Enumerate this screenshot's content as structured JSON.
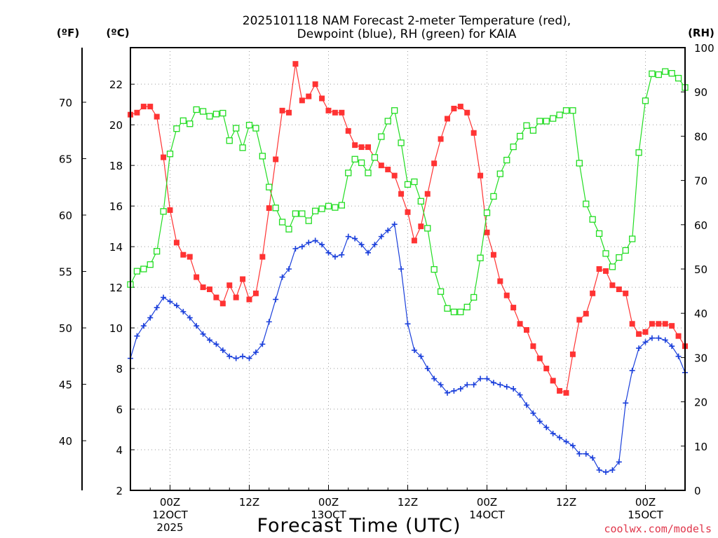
{
  "chart_data": {
    "type": "line",
    "title_lines": [
      "2025101118 NAM Forecast 2-meter Temperature (red),",
      "Dewpoint (blue), RH (green) for KAIA"
    ],
    "units": {
      "fahrenheit": "(ºF)",
      "celsius": "(ºC)",
      "rh": "(RH)"
    },
    "xlabel": "Forecast Time (UTC)",
    "credit": "coolwx.com/models",
    "x_unit": "forecast hour",
    "xlim": [
      0,
      84
    ],
    "x_ticks": [
      {
        "hour": 6,
        "lines": [
          "00Z",
          "12OCT",
          "2025"
        ]
      },
      {
        "hour": 18,
        "lines": [
          "12Z"
        ]
      },
      {
        "hour": 30,
        "lines": [
          "00Z",
          "13OCT"
        ]
      },
      {
        "hour": 42,
        "lines": [
          "12Z"
        ]
      },
      {
        "hour": 54,
        "lines": [
          "00Z",
          "14OCT"
        ]
      },
      {
        "hour": 66,
        "lines": [
          "12Z"
        ]
      },
      {
        "hour": 78,
        "lines": [
          "00Z",
          "15OCT"
        ]
      }
    ],
    "ylim_c": [
      2,
      23.8
    ],
    "celsius_ticks": [
      2,
      4,
      6,
      8,
      10,
      12,
      14,
      16,
      18,
      20,
      22
    ],
    "fahrenheit_ticks": [
      40,
      45,
      50,
      55,
      60,
      65,
      70
    ],
    "ylim_rh": [
      0,
      100
    ],
    "rh_ticks": [
      0,
      10,
      20,
      30,
      40,
      50,
      60,
      70,
      80,
      90,
      100
    ],
    "grid": true,
    "series": [
      {
        "name": "Temperature",
        "axis": "celsius",
        "color": "#ff3333",
        "marker": "filled-square",
        "x": [
          0,
          1,
          2,
          3,
          4,
          5,
          6,
          7,
          8,
          9,
          10,
          11,
          12,
          13,
          14,
          15,
          16,
          17,
          18,
          19,
          20,
          21,
          22,
          23,
          24,
          25,
          26,
          27,
          28,
          29,
          30,
          31,
          32,
          33,
          34,
          35,
          36,
          37,
          38,
          39,
          40,
          41,
          42,
          43,
          44,
          45,
          46,
          47,
          48,
          49,
          50,
          51,
          52,
          53,
          54,
          55,
          56,
          57,
          58,
          59,
          60,
          61,
          62,
          63,
          64,
          65,
          66,
          67,
          68,
          69,
          70,
          71,
          72,
          73,
          74,
          75,
          76,
          77,
          78,
          79,
          80,
          81,
          82,
          83,
          84
        ],
        "values": [
          20.5,
          20.6,
          20.9,
          20.9,
          20.4,
          18.4,
          15.8,
          14.2,
          13.6,
          13.5,
          12.5,
          12.0,
          11.9,
          11.5,
          11.2,
          12.1,
          11.5,
          12.4,
          11.4,
          11.7,
          13.5,
          15.9,
          18.3,
          20.7,
          20.6,
          23.0,
          21.2,
          21.4,
          22.0,
          21.3,
          20.7,
          20.6,
          20.6,
          19.7,
          19.0,
          18.9,
          18.9,
          18.4,
          18.0,
          17.8,
          17.5,
          16.6,
          15.7,
          14.3,
          15.0,
          16.6,
          18.1,
          19.3,
          20.3,
          20.8,
          20.9,
          20.6,
          19.6,
          17.5,
          14.7,
          13.6,
          12.3,
          11.6,
          11.0,
          10.2,
          9.9,
          9.1,
          8.5,
          8.0,
          7.4,
          6.9,
          6.8,
          8.7,
          10.4,
          10.7,
          11.7,
          12.9,
          12.8,
          12.1,
          11.9,
          11.7,
          10.2,
          9.7,
          9.8,
          10.2,
          10.2,
          10.2,
          10.1,
          9.6,
          9.1
        ]
      },
      {
        "name": "Dewpoint",
        "axis": "celsius",
        "color": "#1a3fdb",
        "marker": "plus",
        "x": [
          0,
          1,
          2,
          3,
          4,
          5,
          6,
          7,
          8,
          9,
          10,
          11,
          12,
          13,
          14,
          15,
          16,
          17,
          18,
          19,
          20,
          21,
          22,
          23,
          24,
          25,
          26,
          27,
          28,
          29,
          30,
          31,
          32,
          33,
          34,
          35,
          36,
          37,
          38,
          39,
          40,
          41,
          42,
          43,
          44,
          45,
          46,
          47,
          48,
          49,
          50,
          51,
          52,
          53,
          54,
          55,
          56,
          57,
          58,
          59,
          60,
          61,
          62,
          63,
          64,
          65,
          66,
          67,
          68,
          69,
          70,
          71,
          72,
          73,
          74,
          75,
          76,
          77,
          78,
          79,
          80,
          81,
          82,
          83,
          84
        ],
        "values": [
          8.5,
          9.6,
          10.1,
          10.5,
          11.0,
          11.5,
          11.3,
          11.1,
          10.8,
          10.5,
          10.1,
          9.7,
          9.4,
          9.2,
          8.9,
          8.6,
          8.5,
          8.6,
          8.5,
          8.8,
          9.2,
          10.3,
          11.4,
          12.5,
          12.9,
          13.9,
          14.0,
          14.2,
          14.3,
          14.1,
          13.7,
          13.5,
          13.6,
          14.5,
          14.4,
          14.1,
          13.7,
          14.1,
          14.5,
          14.8,
          15.1,
          12.9,
          10.2,
          8.9,
          8.6,
          8.0,
          7.5,
          7.2,
          6.8,
          6.9,
          7.0,
          7.2,
          7.2,
          7.5,
          7.5,
          7.3,
          7.2,
          7.1,
          7.0,
          6.7,
          6.2,
          5.8,
          5.4,
          5.1,
          4.8,
          4.6,
          4.4,
          4.2,
          3.8,
          3.8,
          3.6,
          3.0,
          2.9,
          3.0,
          3.4,
          6.3,
          7.9,
          9.0,
          9.3,
          9.5,
          9.5,
          9.4,
          9.1,
          8.6,
          7.8
        ]
      },
      {
        "name": "RH",
        "axis": "rh",
        "color": "#22dd22",
        "marker": "open-square",
        "x": [
          0,
          1,
          2,
          3,
          4,
          5,
          6,
          7,
          8,
          9,
          10,
          11,
          12,
          13,
          14,
          15,
          16,
          17,
          18,
          19,
          20,
          21,
          22,
          23,
          24,
          25,
          26,
          27,
          28,
          29,
          30,
          31,
          32,
          33,
          34,
          35,
          36,
          37,
          38,
          39,
          40,
          41,
          42,
          43,
          44,
          45,
          46,
          47,
          48,
          49,
          50,
          51,
          52,
          53,
          54,
          55,
          56,
          57,
          58,
          59,
          60,
          61,
          62,
          63,
          64,
          65,
          66,
          67,
          68,
          69,
          70,
          71,
          72,
          73,
          74,
          75,
          76,
          77,
          78,
          79,
          80,
          81,
          82,
          83,
          84
        ],
        "values": [
          46.5,
          49.5,
          50,
          51,
          54,
          63,
          76,
          81.7,
          83.5,
          82.8,
          86,
          85.6,
          84.5,
          85,
          85.2,
          79,
          81.8,
          77.4,
          82.5,
          81.8,
          75.5,
          68.5,
          63.8,
          60.6,
          59,
          62.5,
          62.5,
          60.9,
          63.1,
          63.6,
          64.2,
          63.9,
          64.4,
          71.7,
          74.8,
          74,
          71.7,
          75.2,
          79.9,
          83.4,
          85.8,
          78.5,
          69.1,
          69.7,
          65.3,
          59.2,
          49.9,
          44.9,
          41.1,
          40.3,
          40.3,
          41.4,
          43.6,
          52.5,
          62.7,
          66.4,
          71.5,
          74.6,
          77.6,
          80,
          82.4,
          81.3,
          83.4,
          83.4,
          84,
          84.8,
          85.8,
          85.8,
          73.9,
          64.7,
          61.2,
          58,
          53.5,
          50.5,
          52.6,
          54.2,
          56.8,
          76.3,
          88,
          94.1,
          93.9,
          94.6,
          94.2,
          93.1,
          91
        ]
      }
    ]
  }
}
